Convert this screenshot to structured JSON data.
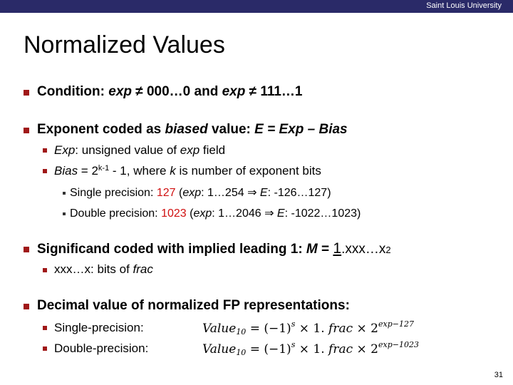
{
  "header": {
    "org": "Saint Louis University"
  },
  "slide": {
    "title": "Normalized Values",
    "page_number": "31",
    "b1": {
      "lead": "Condition: ",
      "exp1": "exp",
      "mid1": " ≠ 000…0 and ",
      "exp2": "exp",
      "mid2": " ≠ 111…1"
    },
    "b2": {
      "lead": "Exponent coded as ",
      "biased": "biased",
      "mid": " value:   ",
      "formula": "E  =  Exp – Bias"
    },
    "b2_1": {
      "exp": "Exp",
      "rest": ":  unsigned value of ",
      "exp2": "exp",
      "tail": " field"
    },
    "b2_2": {
      "bias": "Bias",
      "eq": " = 2",
      "sup": "k-1",
      "mid": " - 1, where ",
      "k": "k",
      "tail": " is number of exponent bits"
    },
    "b2_2_1": {
      "label": "Single precision:  ",
      "value": "127",
      "open": "   (",
      "exp": "exp",
      "range": ": 1…254  ",
      "arrow": "⇒",
      "e": "  E",
      "erange": ": -126…127)"
    },
    "b2_2_2": {
      "label": "Double precision:  ",
      "value": "1023",
      "open": "   (",
      "exp": "exp",
      "range": ": 1…2046 ",
      "arrow": "⇒",
      "e": "  E",
      "erange": ": -1022…1023)"
    },
    "b3": {
      "lead": "Significand coded with implied leading 1:   ",
      "m": "M",
      "eq": "  =  ",
      "one": "1",
      "rest": ".xxx…x",
      "two": "2"
    },
    "b3_1": {
      "xs": "xxx…x",
      "rest": ": bits of ",
      "frac": "frac"
    },
    "b4": {
      "text": "Decimal value of normalized FP representations:"
    },
    "b4_1": {
      "label": "Single-precision:",
      "value": "Value",
      "sub": "10",
      "formula": " = (−1)",
      "s": "s",
      "times": " × 1. ",
      "frac": "frac",
      "times2": " × 2",
      "exp": "exp−127"
    },
    "b4_2": {
      "label": "Double-precision:",
      "value": "Value",
      "sub": "10",
      "formula": " = (−1)",
      "s": "s",
      "times": " × 1. ",
      "frac": "frac",
      "times2": " × 2",
      "exp": "exp−1023"
    }
  }
}
